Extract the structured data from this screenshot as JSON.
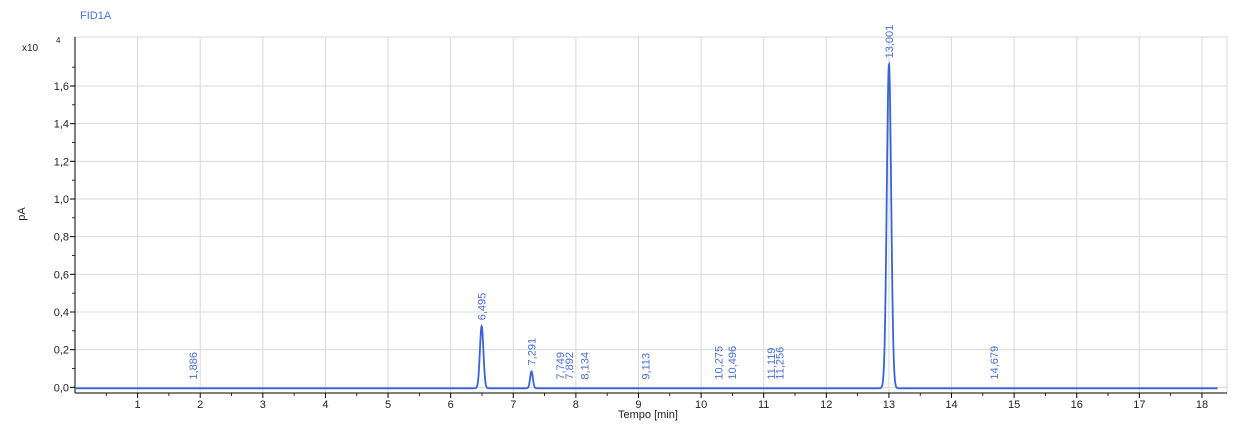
{
  "colors": {
    "trace": "#3a63d8",
    "label": "#4a6fd6",
    "grid": "#d9d9d9",
    "axis": "#000000",
    "text": "#222222"
  },
  "chart_data": {
    "type": "line",
    "title": "FID1A",
    "xlabel": "Tempo [min]",
    "ylabel": "pA",
    "y_multiplier": "x10",
    "y_exponent": "4",
    "xlim": [
      0,
      18.4
    ],
    "ylim": [
      -0.03,
      1.86
    ],
    "x_ticks": [
      1,
      2,
      3,
      4,
      5,
      6,
      7,
      8,
      9,
      10,
      11,
      12,
      13,
      14,
      15,
      16,
      17,
      18
    ],
    "x_tick_labels": [
      "1",
      "2",
      "3",
      "4",
      "5",
      "6",
      "7",
      "8",
      "9",
      "10",
      "11",
      "12",
      "13",
      "14",
      "15",
      "16",
      "17",
      "18"
    ],
    "y_ticks": [
      0.0,
      0.2,
      0.4,
      0.6,
      0.8,
      1.0,
      1.2,
      1.4,
      1.6
    ],
    "y_tick_labels": [
      "0,0",
      "0,2",
      "0,4",
      "0,6",
      "0,8",
      "1,0",
      "1,2",
      "1,4",
      "1,6"
    ],
    "grid": true,
    "series": [
      {
        "baseline": -0.005,
        "x_range": [
          0,
          18.25
        ],
        "peaks": [
          {
            "rt": 1.886,
            "height": 0.0,
            "width": 0.02,
            "label": "1,886"
          },
          {
            "rt": 6.495,
            "height": 0.33,
            "width": 0.028,
            "label": "6,495"
          },
          {
            "rt": 7.291,
            "height": 0.09,
            "width": 0.022,
            "label": "7,291"
          },
          {
            "rt": 7.749,
            "height": 0.0,
            "width": 0.02,
            "label": "7,749"
          },
          {
            "rt": 7.892,
            "height": 0.0,
            "width": 0.02,
            "label": "7,892"
          },
          {
            "rt": 8.134,
            "height": 0.0,
            "width": 0.02,
            "label": "8,134"
          },
          {
            "rt": 9.113,
            "height": 0.0,
            "width": 0.02,
            "label": "9,113"
          },
          {
            "rt": 10.275,
            "height": 0.0,
            "width": 0.02,
            "label": "10,275"
          },
          {
            "rt": 10.496,
            "height": 0.0,
            "width": 0.02,
            "label": "10,496"
          },
          {
            "rt": 11.119,
            "height": 0.0,
            "width": 0.02,
            "label": "11,119"
          },
          {
            "rt": 11.256,
            "height": 0.0,
            "width": 0.02,
            "label": "11,256"
          },
          {
            "rt": 13.001,
            "height": 1.72,
            "width": 0.035,
            "label": "13,001"
          },
          {
            "rt": 14.679,
            "height": 0.0,
            "width": 0.02,
            "label": "14,679"
          }
        ]
      }
    ]
  }
}
